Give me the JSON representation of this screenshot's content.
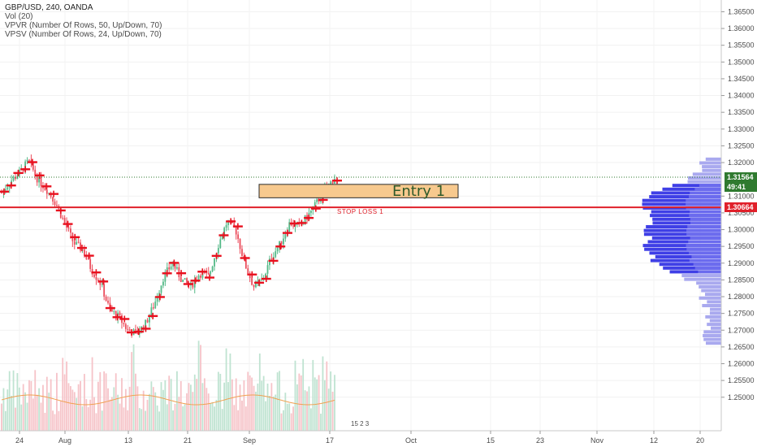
{
  "legend": {
    "title": "GBP/USD, 240, OANDA",
    "vol": "Vol (20)",
    "vpvr": "VPVR (Number Of Rows, 50, Up/Down, 70)",
    "vpsv": "VPSV (Number Of Rows, 24, Up/Down, 70)"
  },
  "annotations": {
    "entry": "Entry 1",
    "stop_loss": "STOP LOSS 1",
    "badge": "15  2  3"
  },
  "price_tags": {
    "last": "1.31564",
    "countdown": "49:41",
    "stop": "1.30664"
  },
  "colors": {
    "up": "#53b987",
    "down": "#eb4d5c",
    "stop_line": "#e0202a",
    "vpvr_up": "#3f3fe6",
    "vpvr_light": "#a9a9ef",
    "entry_fill": "#f7c98e",
    "last_tag": "#2f7a2f",
    "dotted": "#2f7a2f"
  },
  "chart_data": {
    "type": "candlestick",
    "symbol": "GBP/USD",
    "interval": "240",
    "source": "OANDA",
    "ylim": [
      1.245,
      1.368
    ],
    "y_ticks": [
      "1.36500",
      "1.36000",
      "1.35500",
      "1.35000",
      "1.34500",
      "1.34000",
      "1.33500",
      "1.33000",
      "1.32500",
      "1.32000",
      "1.31000",
      "1.30500",
      "1.30000",
      "1.29500",
      "1.29000",
      "1.28500",
      "1.28000",
      "1.27500",
      "1.27000",
      "1.26500",
      "1.26000",
      "1.25500",
      "1.25000"
    ],
    "x_ticks": [
      "24",
      "Aug",
      "13",
      "21",
      "Sep",
      "17",
      "Oct",
      "15",
      "23",
      "Nov",
      "12",
      "20"
    ],
    "close_path": [
      [
        "24",
        1.311
      ],
      [
        "",
        1.3145
      ],
      [
        "",
        1.317
      ],
      [
        "",
        1.3205
      ],
      [
        "",
        1.315
      ],
      [
        "",
        1.312
      ],
      [
        "Aug",
        1.308
      ],
      [
        "",
        1.302
      ],
      [
        "",
        1.296
      ],
      [
        "",
        1.294
      ],
      [
        "",
        1.288
      ],
      [
        "",
        1.284
      ],
      [
        "13",
        1.276
      ],
      [
        "",
        1.274
      ],
      [
        "",
        1.27
      ],
      [
        "",
        1.269
      ],
      [
        "",
        1.272
      ],
      [
        "",
        1.278
      ],
      [
        "21",
        1.286
      ],
      [
        "",
        1.29
      ],
      [
        "",
        1.285
      ],
      [
        "",
        1.283
      ],
      [
        "",
        1.287
      ],
      [
        "",
        1.286
      ],
      [
        "",
        1.295
      ],
      [
        "",
        1.302
      ],
      [
        "",
        1.3
      ],
      [
        "Sep",
        1.29
      ],
      [
        "",
        1.283
      ],
      [
        "",
        1.285
      ],
      [
        "",
        1.292
      ],
      [
        "",
        1.296
      ],
      [
        "",
        1.302
      ],
      [
        "",
        1.301
      ],
      [
        "",
        1.304
      ],
      [
        "",
        1.308
      ],
      [
        "17",
        1.312
      ],
      [
        "",
        1.3156
      ]
    ],
    "horizontal_lines": [
      {
        "label": "STOP LOSS 1",
        "price": 1.30664
      },
      {
        "label": "last",
        "price": 1.31564
      }
    ],
    "entry_zone": {
      "label": "Entry 1",
      "low": 1.3095,
      "high": 1.3135
    },
    "volume_profile_note": "VPVR histogram on right"
  }
}
